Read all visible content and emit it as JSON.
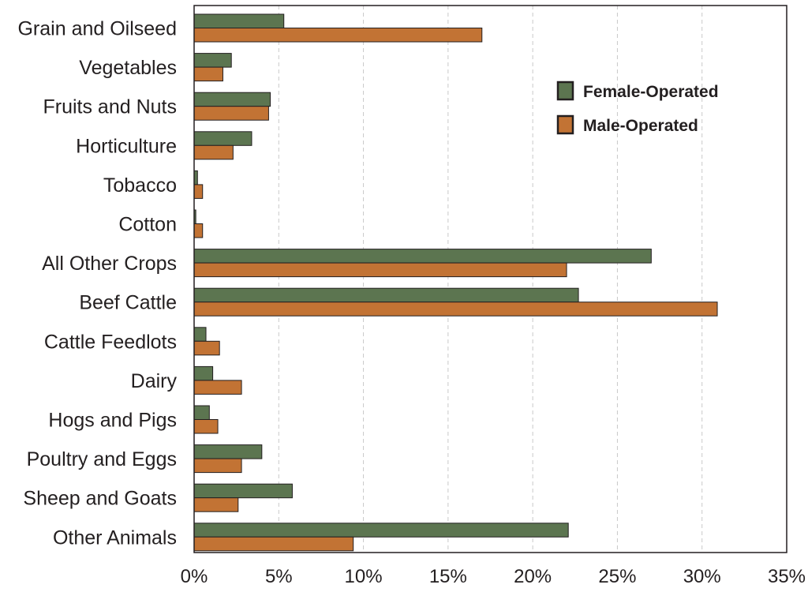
{
  "chart_data": {
    "type": "bar",
    "orientation": "horizontal",
    "categories": [
      "Grain and Oilseed",
      "Vegetables",
      "Fruits and Nuts",
      "Horticulture",
      "Tobacco",
      "Cotton",
      "All Other Crops",
      "Beef Cattle",
      "Cattle Feedlots",
      "Dairy",
      "Hogs and Pigs",
      "Poultry and Eggs",
      "Sheep and Goats",
      "Other Animals"
    ],
    "series": [
      {
        "name": "Female-Operated",
        "color": "#5c7550",
        "values": [
          5.3,
          2.2,
          4.5,
          3.4,
          0.2,
          0.1,
          27.0,
          22.7,
          0.7,
          1.1,
          0.9,
          4.0,
          5.8,
          22.1
        ]
      },
      {
        "name": "Male-Operated",
        "color": "#c27334",
        "values": [
          17.0,
          1.7,
          4.4,
          2.3,
          0.5,
          0.5,
          22.0,
          30.9,
          1.5,
          2.8,
          1.4,
          2.8,
          2.6,
          9.4
        ]
      }
    ],
    "x_ticks": [
      "0%",
      "5%",
      "10%",
      "15%",
      "20%",
      "25%",
      "30%",
      "35%"
    ],
    "xlim": [
      0,
      35
    ],
    "unit": "%",
    "grid": "vertical dashed",
    "legend_position": "top-right",
    "title": "",
    "xlabel": "",
    "ylabel": ""
  }
}
